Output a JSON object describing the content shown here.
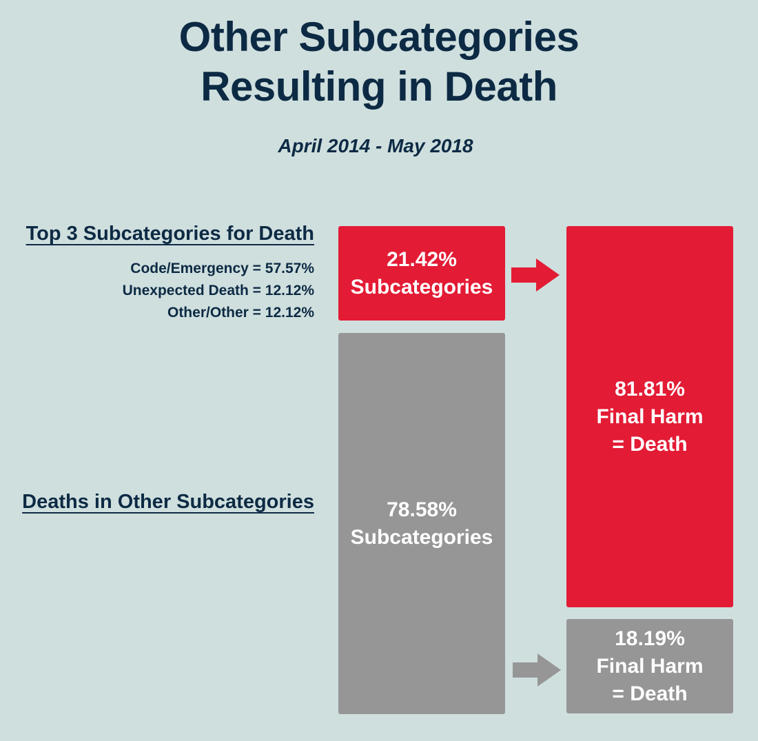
{
  "title_lines": [
    "Other Subcategories",
    "Resulting in Death"
  ],
  "subtitle": "April 2014 - May 2018",
  "top3": {
    "heading": "Top 3 Subcategories for Death",
    "items": [
      "Code/Emergency = 57.57%",
      "Unexpected Death = 12.12%",
      "Other/Other = 12.12%"
    ]
  },
  "other_heading": "Deaths in Other Subcategories",
  "boxes": {
    "top3_subcategories": {
      "value": "21.42%",
      "label": "Subcategories",
      "fraction": 0.2142
    },
    "other_subcategories": {
      "value": "78.58%",
      "label": "Subcategories",
      "fraction": 0.7858
    },
    "final_death": {
      "value": "81.81%",
      "line2": "Final Harm",
      "line3": "= Death",
      "fraction": 0.8181
    },
    "final_other": {
      "value": "18.19%",
      "line2": "Final Harm",
      "line3": "= Death",
      "fraction": 0.1819
    }
  },
  "colors": {
    "background": "#cfdfde",
    "text": "#0d2a44",
    "red": "#e31b35",
    "gray": "#969696"
  },
  "icons": [
    "arrow-right-icon"
  ]
}
